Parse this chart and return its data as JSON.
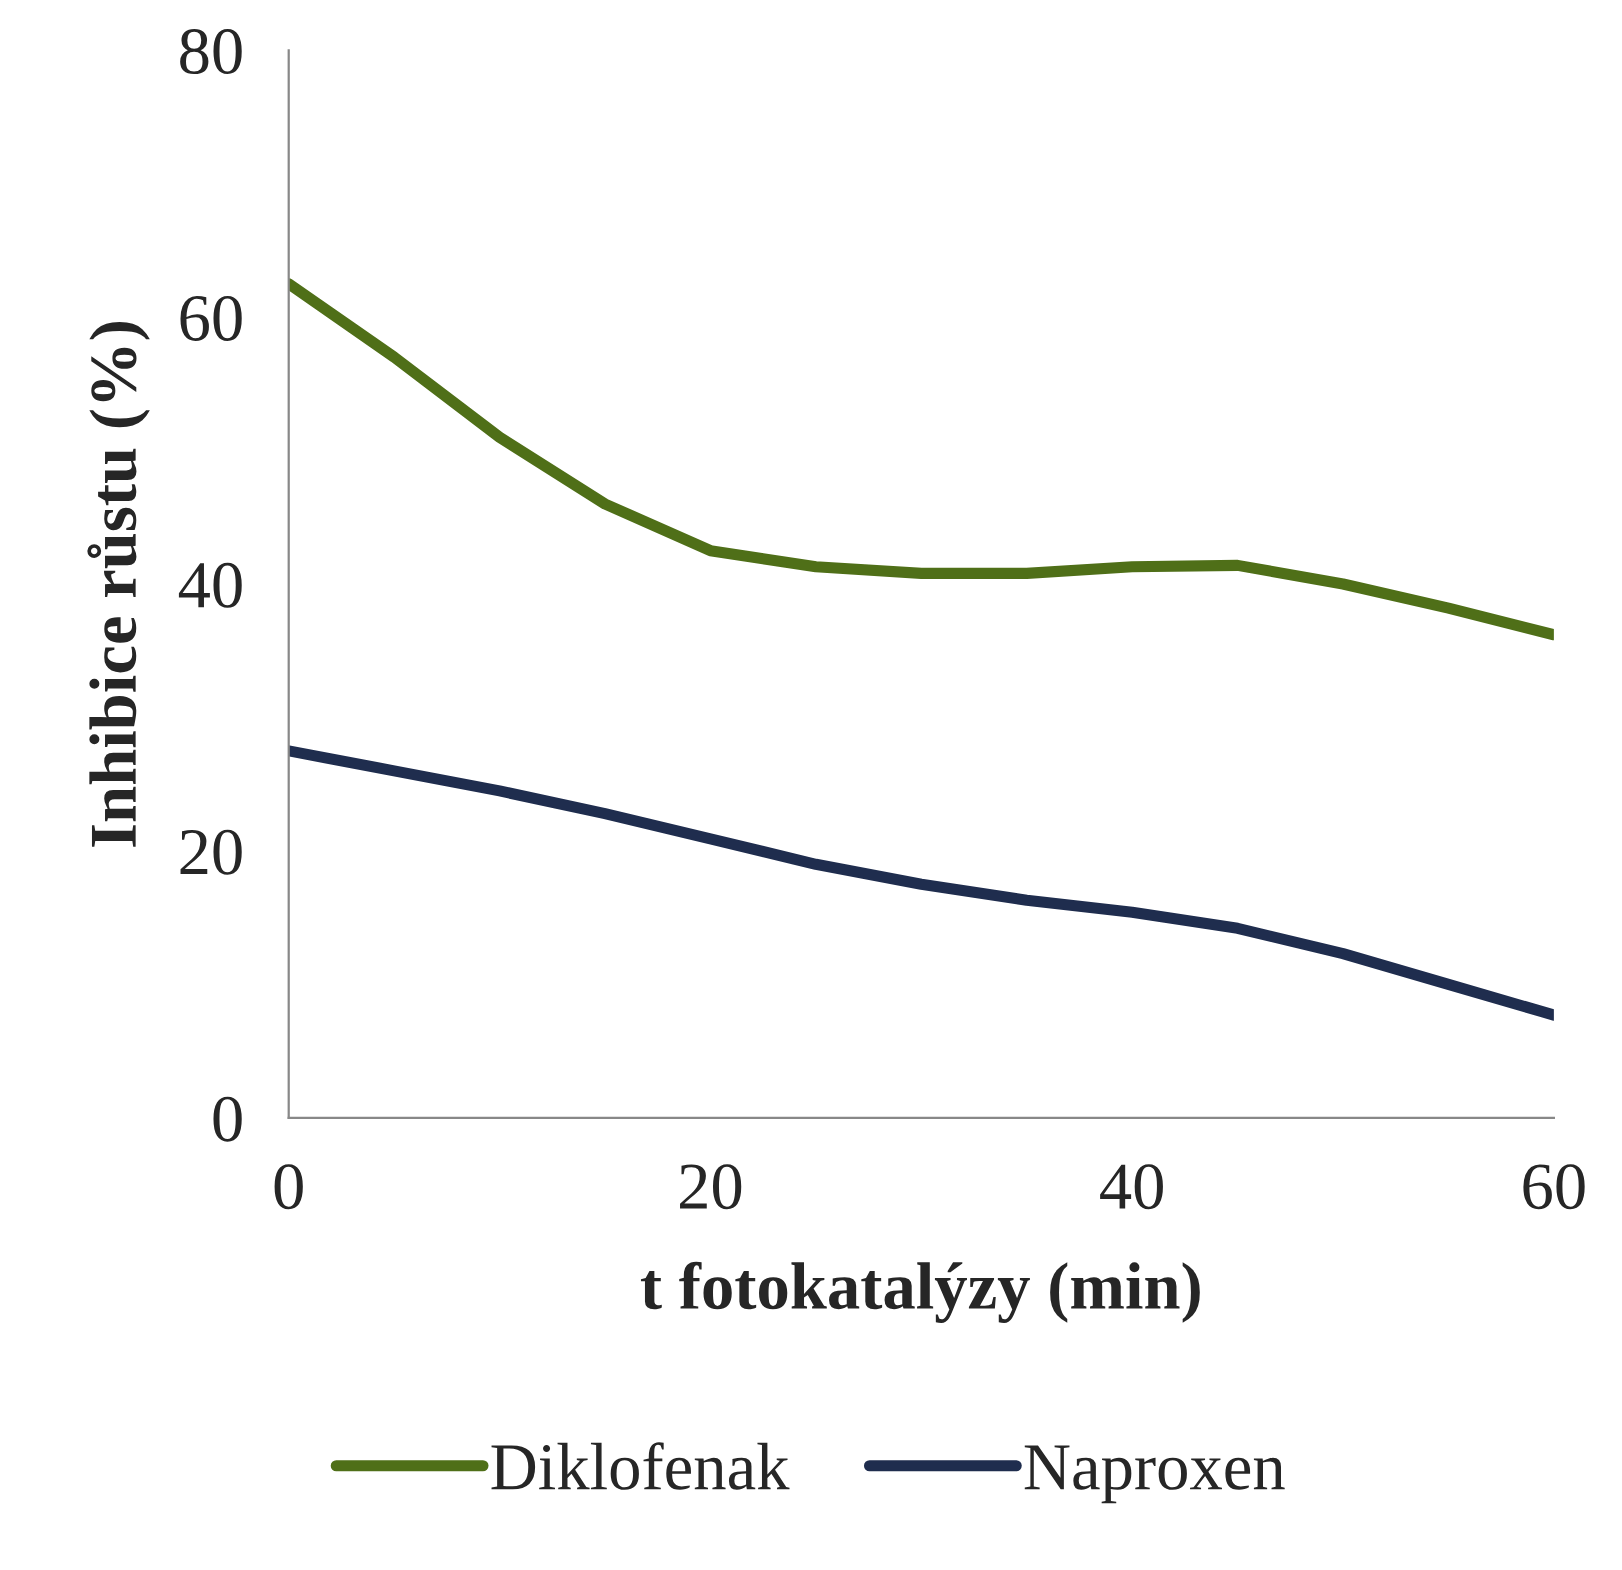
{
  "chart_data": {
    "type": "line",
    "xlabel": "t fotokatalýzy (min)",
    "ylabel": "Inhibice růstu (%)",
    "x": [
      0,
      5,
      10,
      15,
      20,
      25,
      30,
      35,
      40,
      45,
      50,
      55,
      60
    ],
    "series": [
      {
        "name": "Diklofenak",
        "color": "#4f6f18",
        "values": [
          62.5,
          57,
          51,
          46,
          42.5,
          41.3,
          40.8,
          40.8,
          41.3,
          41.4,
          40,
          38.2,
          36.2
        ]
      },
      {
        "name": "Naproxen",
        "color": "#1f2d4e",
        "values": [
          27.5,
          26,
          24.5,
          22.8,
          20.9,
          19,
          17.5,
          16.3,
          15.4,
          14.2,
          12.3,
          10,
          7.7
        ]
      }
    ],
    "xlim": [
      0,
      60
    ],
    "xticks": [
      0,
      20,
      40,
      60
    ],
    "ylim": [
      0,
      80
    ],
    "yticks": [
      0,
      20,
      40,
      60,
      80
    ],
    "grid": false,
    "legend": "bottom",
    "marker": "none",
    "line_style": "solid"
  }
}
